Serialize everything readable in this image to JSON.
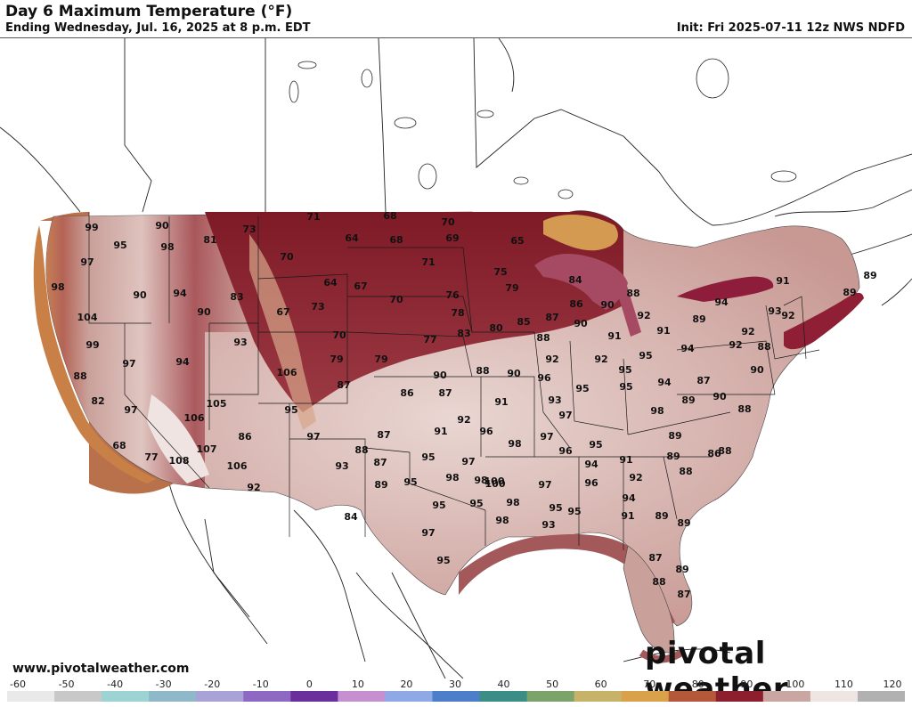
{
  "header": {
    "title": "Day 6 Maximum Temperature (°F)",
    "subtitle": "Ending Wednesday, Jul. 16, 2025 at 8 p.m. EDT",
    "init": "Init: Fri 2025-07-11 12z NWS NDFD"
  },
  "footer": {
    "website": "www.pivotalweather.com",
    "logo": "pivotal weather"
  },
  "colorbar": {
    "ticks": [
      "-60",
      "-50",
      "-40",
      "-30",
      "-20",
      "-10",
      "0",
      "10",
      "20",
      "30",
      "40",
      "50",
      "60",
      "70",
      "80",
      "90",
      "100",
      "110",
      "120"
    ],
    "colors": [
      "#e9e9e9",
      "#c8c8c8",
      "#9ed3d3",
      "#8fb9c9",
      "#a9a2d6",
      "#8e69c4",
      "#6a2f9c",
      "#c58fd0",
      "#8fa8e6",
      "#4d7ec9",
      "#3a8e85",
      "#7ba36a",
      "#c7b26a",
      "#d9a24a",
      "#b5583a",
      "#8c1e2e",
      "#c9a6a1",
      "#efe6e4",
      "#b1b1b1"
    ]
  },
  "temperatures": [
    {
      "v": "99"
    },
    {
      "v": "90"
    },
    {
      "v": "95"
    },
    {
      "v": "98"
    },
    {
      "v": "97"
    },
    {
      "v": "81"
    },
    {
      "v": "73"
    },
    {
      "v": "71"
    },
    {
      "v": "68"
    },
    {
      "v": "70"
    },
    {
      "v": "64"
    },
    {
      "v": "68"
    },
    {
      "v": "69"
    },
    {
      "v": "65"
    },
    {
      "v": "70"
    },
    {
      "v": "71"
    },
    {
      "v": "75"
    },
    {
      "v": "79"
    },
    {
      "v": "84"
    },
    {
      "v": "98"
    },
    {
      "v": "90"
    },
    {
      "v": "94"
    },
    {
      "v": "83"
    },
    {
      "v": "64"
    },
    {
      "v": "67"
    },
    {
      "v": "70"
    },
    {
      "v": "76"
    },
    {
      "v": "78"
    },
    {
      "v": "85"
    },
    {
      "v": "87"
    },
    {
      "v": "86"
    },
    {
      "v": "90"
    },
    {
      "v": "88"
    },
    {
      "v": "92"
    },
    {
      "v": "91"
    },
    {
      "v": "89"
    },
    {
      "v": "89"
    },
    {
      "v": "104"
    },
    {
      "v": "90"
    },
    {
      "v": "67"
    },
    {
      "v": "73"
    },
    {
      "v": "70"
    },
    {
      "v": "77"
    },
    {
      "v": "83"
    },
    {
      "v": "80"
    },
    {
      "v": "88"
    },
    {
      "v": "90"
    },
    {
      "v": "91"
    },
    {
      "v": "91"
    },
    {
      "v": "94"
    },
    {
      "v": "89"
    },
    {
      "v": "92"
    },
    {
      "v": "93"
    },
    {
      "v": "92"
    },
    {
      "v": "99"
    },
    {
      "v": "93"
    },
    {
      "v": "97"
    },
    {
      "v": "94"
    },
    {
      "v": "79"
    },
    {
      "v": "79"
    },
    {
      "v": "88"
    },
    {
      "v": "90"
    },
    {
      "v": "92"
    },
    {
      "v": "92"
    },
    {
      "v": "95"
    },
    {
      "v": "95"
    },
    {
      "v": "94"
    },
    {
      "v": "92"
    },
    {
      "v": "88"
    },
    {
      "v": "106"
    },
    {
      "v": "90"
    },
    {
      "v": "87"
    },
    {
      "v": "86"
    },
    {
      "v": "87"
    },
    {
      "v": "96"
    },
    {
      "v": "95"
    },
    {
      "v": "95"
    },
    {
      "v": "94"
    },
    {
      "v": "87"
    },
    {
      "v": "90"
    },
    {
      "v": "88"
    },
    {
      "v": "82"
    },
    {
      "v": "97"
    },
    {
      "v": "105"
    },
    {
      "v": "106"
    },
    {
      "v": "95"
    },
    {
      "v": "91"
    },
    {
      "v": "93"
    },
    {
      "v": "90"
    },
    {
      "v": "89"
    },
    {
      "v": "88"
    },
    {
      "v": "97"
    },
    {
      "v": "98"
    },
    {
      "v": "86"
    },
    {
      "v": "97"
    },
    {
      "v": "92"
    },
    {
      "v": "91"
    },
    {
      "v": "96"
    },
    {
      "v": "97"
    },
    {
      "v": "95"
    },
    {
      "v": "87"
    },
    {
      "v": "89"
    },
    {
      "v": "68"
    },
    {
      "v": "107"
    },
    {
      "v": "108"
    },
    {
      "v": "77"
    },
    {
      "v": "88"
    },
    {
      "v": "87"
    },
    {
      "v": "98"
    },
    {
      "v": "95"
    },
    {
      "v": "97"
    },
    {
      "v": "96"
    },
    {
      "v": "94"
    },
    {
      "v": "91"
    },
    {
      "v": "89"
    },
    {
      "v": "86"
    },
    {
      "v": "106"
    },
    {
      "v": "93"
    },
    {
      "v": "89"
    },
    {
      "v": "95"
    },
    {
      "v": "98"
    },
    {
      "v": "98"
    },
    {
      "v": "97"
    },
    {
      "v": "96"
    },
    {
      "v": "92"
    },
    {
      "v": "88"
    },
    {
      "v": "100"
    },
    {
      "v": "92"
    },
    {
      "v": "95"
    },
    {
      "v": "100"
    },
    {
      "v": "98"
    },
    {
      "v": "94"
    },
    {
      "v": "88"
    },
    {
      "v": "95"
    },
    {
      "v": "98"
    },
    {
      "v": "95"
    },
    {
      "v": "93"
    },
    {
      "v": "95"
    },
    {
      "v": "91"
    },
    {
      "v": "89"
    },
    {
      "v": "84"
    },
    {
      "v": "97"
    },
    {
      "v": "95"
    },
    {
      "v": "89"
    },
    {
      "v": "87"
    },
    {
      "v": "89"
    },
    {
      "v": "88"
    },
    {
      "v": "87"
    }
  ]
}
